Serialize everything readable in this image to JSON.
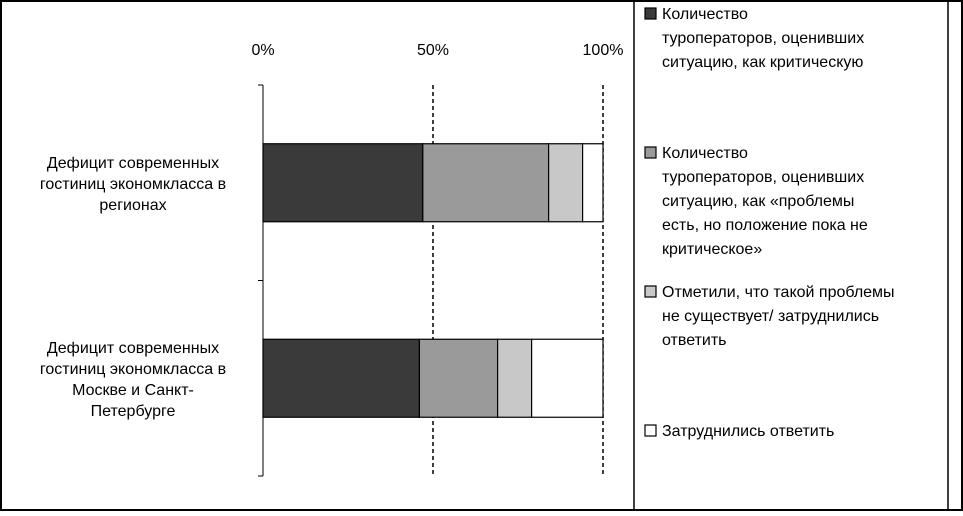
{
  "chart_data": {
    "type": "bar",
    "orientation": "horizontal",
    "stacked": "percent",
    "xlim": [
      0,
      100
    ],
    "x_ticks": [
      "0%",
      "50%",
      "100%"
    ],
    "categories": [
      {
        "lines": [
          "Дефицит современных",
          "гостиниц экономкласса в",
          "регионах"
        ]
      },
      {
        "lines": [
          "Дефицит современных",
          "гостиниц экономкласса в",
          "Москве и Санкт-",
          "Петербурге"
        ]
      }
    ],
    "series": [
      {
        "name_lines": [
          "Количество",
          "туроператоров, оценивших",
          "ситуацию, как критическую"
        ],
        "color": "#3a3a3a",
        "values": [
          47,
          46
        ]
      },
      {
        "name_lines": [
          "Количество",
          "туроператоров, оценивших",
          "ситуацию, как «проблемы",
          "есть, но положение пока не",
          "критическое»"
        ],
        "color": "#9a9a9a",
        "values": [
          37,
          23
        ]
      },
      {
        "name_lines": [
          "Отметили, что такой проблемы",
          "не существует/ затруднились",
          "ответить"
        ],
        "color": "#c8c8c8",
        "values": [
          10,
          10
        ]
      },
      {
        "name_lines": [
          "Затруднились ответить"
        ],
        "color": "#ffffff",
        "values": [
          6,
          21
        ]
      }
    ],
    "gridlines": "dashed at 50% and 100%",
    "legend": "right"
  }
}
